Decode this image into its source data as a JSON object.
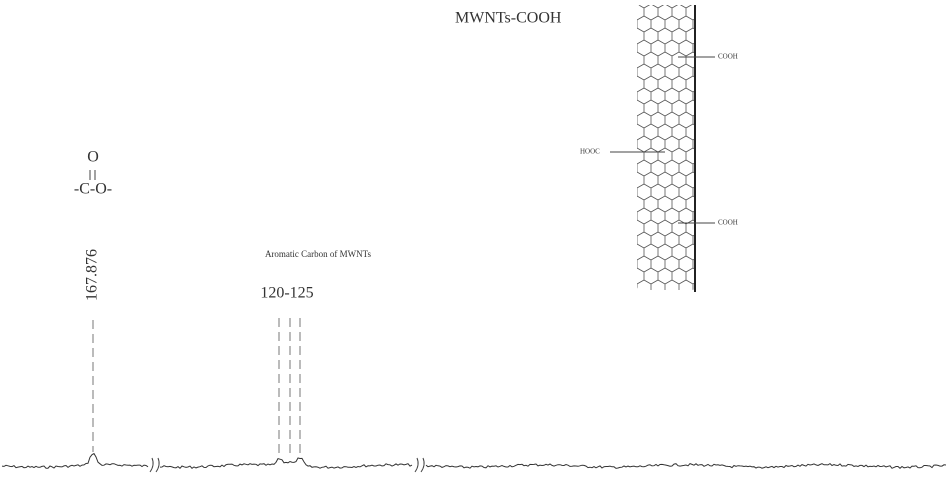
{
  "structure": {
    "title": "MWNTs-COOH",
    "groups": [
      "COOH",
      "HOOC",
      "COOH"
    ]
  },
  "carbonyl": {
    "oxygen": "O",
    "chain": "-C-O-",
    "shift": "167.876"
  },
  "aromatic": {
    "label": "Aromatic Carbon of MWNTs",
    "shift": "120-125"
  }
}
